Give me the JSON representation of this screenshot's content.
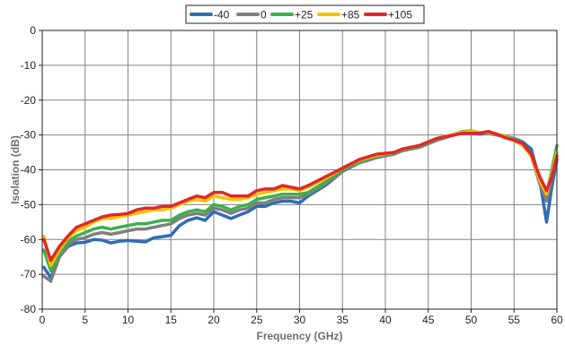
{
  "chart_data": {
    "type": "line",
    "xlabel": "Frequency (GHz)",
    "ylabel": "Isolation (dB)",
    "xlim": [
      0,
      60
    ],
    "ylim": [
      -80,
      0
    ],
    "xticks": [
      "0",
      "5",
      "10",
      "15",
      "20",
      "25",
      "30",
      "35",
      "40",
      "45",
      "50",
      "55",
      "60"
    ],
    "yticks": [
      "0",
      "-10",
      "-20",
      "-30",
      "-40",
      "-50",
      "-60",
      "-70",
      "-80"
    ],
    "grid": true,
    "legend_position": "top-center",
    "series": [
      {
        "name": "-40",
        "color": "#2f6db5",
        "points": [
          [
            0.2,
            -68
          ],
          [
            1,
            -71
          ],
          [
            2,
            -65
          ],
          [
            3,
            -62
          ],
          [
            4,
            -61
          ],
          [
            5,
            -60.8
          ],
          [
            6,
            -60
          ],
          [
            7,
            -60.2
          ],
          [
            8,
            -61
          ],
          [
            9,
            -60.5
          ],
          [
            10,
            -60.3
          ],
          [
            11,
            -60.5
          ],
          [
            12,
            -60.7
          ],
          [
            13,
            -59.5
          ],
          [
            14,
            -59.2
          ],
          [
            15,
            -58.8
          ],
          [
            16,
            -56
          ],
          [
            17,
            -54.5
          ],
          [
            18,
            -53.8
          ],
          [
            19,
            -54.5
          ],
          [
            20,
            -52
          ],
          [
            21,
            -53
          ],
          [
            22,
            -54
          ],
          [
            23,
            -53
          ],
          [
            24,
            -52
          ],
          [
            25,
            -50.5
          ],
          [
            26,
            -50.5
          ],
          [
            27,
            -49.5
          ],
          [
            28,
            -49
          ],
          [
            29,
            -49
          ],
          [
            30,
            -49.5
          ],
          [
            31,
            -47.5
          ],
          [
            33,
            -44.5
          ],
          [
            35,
            -40.5
          ],
          [
            37,
            -37.8
          ],
          [
            39,
            -36.3
          ],
          [
            41,
            -35.5
          ],
          [
            42,
            -34.5
          ],
          [
            44,
            -33.5
          ],
          [
            46,
            -31.5
          ],
          [
            48,
            -30
          ],
          [
            49,
            -29.5
          ],
          [
            50,
            -29.5
          ],
          [
            51,
            -29.8
          ],
          [
            52,
            -29.5
          ],
          [
            53,
            -30
          ],
          [
            54,
            -30.5
          ],
          [
            55,
            -31
          ],
          [
            56,
            -32
          ],
          [
            57,
            -34
          ],
          [
            58,
            -43
          ],
          [
            58.8,
            -55
          ],
          [
            59.4,
            -45
          ],
          [
            60,
            -37
          ]
        ]
      },
      {
        "name": "0",
        "color": "#7f7f7f",
        "points": [
          [
            0.2,
            -70.5
          ],
          [
            1,
            -72
          ],
          [
            2,
            -65
          ],
          [
            3,
            -61.5
          ],
          [
            4,
            -60
          ],
          [
            5,
            -59.5
          ],
          [
            6,
            -58.5
          ],
          [
            7,
            -58
          ],
          [
            8,
            -58.5
          ],
          [
            9,
            -58
          ],
          [
            10,
            -57.5
          ],
          [
            11,
            -57
          ],
          [
            12,
            -57
          ],
          [
            13,
            -56.5
          ],
          [
            14,
            -56
          ],
          [
            15,
            -55.5
          ],
          [
            16,
            -54
          ],
          [
            17,
            -53
          ],
          [
            18,
            -52.5
          ],
          [
            19,
            -53
          ],
          [
            20,
            -51
          ],
          [
            21,
            -51.5
          ],
          [
            22,
            -52.5
          ],
          [
            23,
            -51.5
          ],
          [
            24,
            -51
          ],
          [
            25,
            -49.5
          ],
          [
            26,
            -49.5
          ],
          [
            27,
            -48.5
          ],
          [
            28,
            -48
          ],
          [
            29,
            -48
          ],
          [
            30,
            -48
          ],
          [
            31,
            -47
          ],
          [
            33,
            -44
          ],
          [
            35,
            -40.5
          ],
          [
            37,
            -38
          ],
          [
            39,
            -36.5
          ],
          [
            41,
            -35.5
          ],
          [
            42,
            -34.5
          ],
          [
            44,
            -33.5
          ],
          [
            46,
            -31.5
          ],
          [
            48,
            -30
          ],
          [
            49,
            -29.2
          ],
          [
            50,
            -29
          ],
          [
            51,
            -29.5
          ],
          [
            52,
            -29.5
          ],
          [
            53,
            -30
          ],
          [
            54,
            -30.5
          ],
          [
            55,
            -31.5
          ],
          [
            56,
            -33
          ],
          [
            57,
            -36
          ],
          [
            58,
            -44
          ],
          [
            58.8,
            -49
          ],
          [
            59.4,
            -42
          ],
          [
            60,
            -35
          ]
        ]
      },
      {
        "name": "+25",
        "color": "#3db04b",
        "points": [
          [
            0.2,
            -63
          ],
          [
            1,
            -69
          ],
          [
            2,
            -64
          ],
          [
            3,
            -60.5
          ],
          [
            4,
            -59
          ],
          [
            5,
            -58
          ],
          [
            6,
            -57
          ],
          [
            7,
            -56.5
          ],
          [
            8,
            -57
          ],
          [
            9,
            -56.5
          ],
          [
            10,
            -56
          ],
          [
            11,
            -55.5
          ],
          [
            12,
            -55.5
          ],
          [
            13,
            -55
          ],
          [
            14,
            -54.5
          ],
          [
            15,
            -54.5
          ],
          [
            16,
            -53
          ],
          [
            17,
            -52
          ],
          [
            18,
            -51.5
          ],
          [
            19,
            -52
          ],
          [
            20,
            -50
          ],
          [
            21,
            -50.5
          ],
          [
            22,
            -51.5
          ],
          [
            23,
            -50.5
          ],
          [
            24,
            -50
          ],
          [
            25,
            -48.5
          ],
          [
            26,
            -48
          ],
          [
            27,
            -47.5
          ],
          [
            28,
            -47
          ],
          [
            29,
            -47
          ],
          [
            30,
            -47
          ],
          [
            31,
            -46.5
          ],
          [
            33,
            -43.5
          ],
          [
            35,
            -40
          ],
          [
            37,
            -37.5
          ],
          [
            39,
            -36
          ],
          [
            41,
            -35.2
          ],
          [
            42,
            -34.2
          ],
          [
            44,
            -33.2
          ],
          [
            46,
            -31.2
          ],
          [
            48,
            -29.8
          ],
          [
            49,
            -29
          ],
          [
            50,
            -28.8
          ],
          [
            51,
            -29.3
          ],
          [
            52,
            -29.3
          ],
          [
            53,
            -29.8
          ],
          [
            54,
            -30.3
          ],
          [
            55,
            -31.2
          ],
          [
            56,
            -32.5
          ],
          [
            57,
            -35.5
          ],
          [
            58,
            -43
          ],
          [
            58.8,
            -47
          ],
          [
            59.4,
            -40
          ],
          [
            60,
            -33
          ]
        ]
      },
      {
        "name": "+85",
        "color": "#f5c400",
        "points": [
          [
            0.2,
            -59
          ],
          [
            1,
            -67.5
          ],
          [
            2,
            -63
          ],
          [
            3,
            -59.5
          ],
          [
            4,
            -57.5
          ],
          [
            5,
            -56.5
          ],
          [
            6,
            -55
          ],
          [
            7,
            -54
          ],
          [
            8,
            -54
          ],
          [
            9,
            -53.5
          ],
          [
            10,
            -53
          ],
          [
            11,
            -52.5
          ],
          [
            12,
            -52
          ],
          [
            13,
            -51.5
          ],
          [
            14,
            -51.5
          ],
          [
            15,
            -51
          ],
          [
            16,
            -50
          ],
          [
            17,
            -49
          ],
          [
            18,
            -48.5
          ],
          [
            19,
            -49
          ],
          [
            20,
            -47.5
          ],
          [
            21,
            -48
          ],
          [
            22,
            -48.5
          ],
          [
            23,
            -48.5
          ],
          [
            24,
            -48
          ],
          [
            25,
            -47
          ],
          [
            26,
            -46.5
          ],
          [
            27,
            -46
          ],
          [
            28,
            -45.5
          ],
          [
            29,
            -45.5
          ],
          [
            30,
            -46
          ],
          [
            31,
            -45
          ],
          [
            33,
            -42.5
          ],
          [
            35,
            -39.5
          ],
          [
            37,
            -37.2
          ],
          [
            39,
            -35.8
          ],
          [
            41,
            -35
          ],
          [
            42,
            -34
          ],
          [
            44,
            -33
          ],
          [
            46,
            -31
          ],
          [
            48,
            -29.8
          ],
          [
            49,
            -29.2
          ],
          [
            50,
            -29
          ],
          [
            51,
            -29.3
          ],
          [
            52,
            -29.2
          ],
          [
            53,
            -29.8
          ],
          [
            54,
            -30.5
          ],
          [
            55,
            -31.5
          ],
          [
            56,
            -33
          ],
          [
            57,
            -36
          ],
          [
            58,
            -43
          ],
          [
            58.8,
            -47
          ],
          [
            59.4,
            -41
          ],
          [
            60,
            -35
          ]
        ]
      },
      {
        "name": "+105",
        "color": "#e3262a",
        "points": [
          [
            0.2,
            -60
          ],
          [
            1,
            -66
          ],
          [
            2,
            -62
          ],
          [
            3,
            -59
          ],
          [
            4,
            -56.5
          ],
          [
            5,
            -55.5
          ],
          [
            6,
            -54.5
          ],
          [
            7,
            -53.5
          ],
          [
            8,
            -53
          ],
          [
            9,
            -52.8
          ],
          [
            10,
            -52.5
          ],
          [
            11,
            -51.5
          ],
          [
            12,
            -51
          ],
          [
            13,
            -51
          ],
          [
            14,
            -50.5
          ],
          [
            15,
            -50.5
          ],
          [
            16,
            -49.5
          ],
          [
            17,
            -48.5
          ],
          [
            18,
            -47.5
          ],
          [
            19,
            -48
          ],
          [
            20,
            -46.5
          ],
          [
            21,
            -46.5
          ],
          [
            22,
            -47.5
          ],
          [
            23,
            -47.5
          ],
          [
            24,
            -47.5
          ],
          [
            25,
            -46
          ],
          [
            26,
            -45.5
          ],
          [
            27,
            -45.5
          ],
          [
            28,
            -44.5
          ],
          [
            29,
            -45
          ],
          [
            30,
            -45.5
          ],
          [
            31,
            -44.5
          ],
          [
            33,
            -42
          ],
          [
            35,
            -39.5
          ],
          [
            37,
            -37
          ],
          [
            39,
            -35.5
          ],
          [
            41,
            -35
          ],
          [
            42,
            -34
          ],
          [
            44,
            -33
          ],
          [
            46,
            -31
          ],
          [
            48,
            -30
          ],
          [
            49,
            -29.5
          ],
          [
            50,
            -29.5
          ],
          [
            51,
            -29.5
          ],
          [
            52,
            -29
          ],
          [
            53,
            -29.8
          ],
          [
            54,
            -30.8
          ],
          [
            55,
            -31.5
          ],
          [
            56,
            -32.5
          ],
          [
            57,
            -35.5
          ],
          [
            58,
            -42
          ],
          [
            58.8,
            -46
          ],
          [
            59.4,
            -42
          ],
          [
            60,
            -36
          ]
        ]
      }
    ]
  }
}
